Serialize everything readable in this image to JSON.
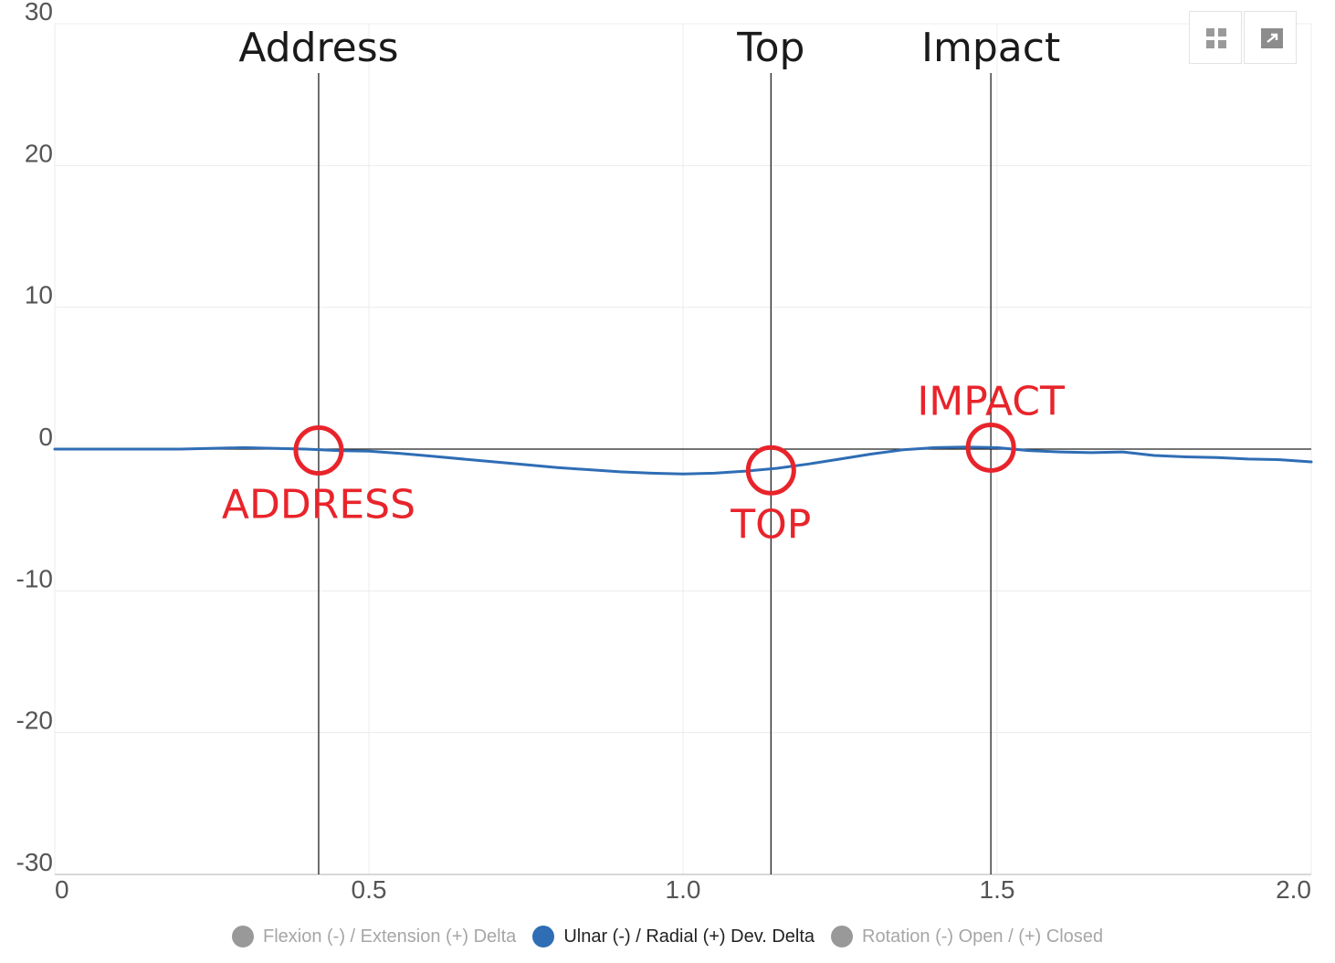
{
  "chart_data": {
    "type": "line",
    "xlim": [
      0,
      2.0
    ],
    "ylim": [
      -30,
      30
    ],
    "x_ticks": [
      {
        "value": 0,
        "label": "0"
      },
      {
        "value": 0.5,
        "label": "0.5"
      },
      {
        "value": 1.0,
        "label": "1.0"
      },
      {
        "value": 1.5,
        "label": "1.5"
      },
      {
        "value": 2.0,
        "label": "2.0"
      }
    ],
    "y_ticks": [
      {
        "value": 30,
        "label": "30"
      },
      {
        "value": 20,
        "label": "20"
      },
      {
        "value": 10,
        "label": "10"
      },
      {
        "value": 0,
        "label": "0"
      },
      {
        "value": -10,
        "label": "-10"
      },
      {
        "value": -20,
        "label": "-20"
      },
      {
        "value": -30,
        "label": "-30"
      }
    ],
    "grid": true,
    "legend_position": "bottom",
    "series": [
      {
        "name": "Flexion (-) / Extension (+) Delta",
        "color": "#999999",
        "visible": false,
        "x": [],
        "y": []
      },
      {
        "name": "Ulnar (-) / Radial (+) Dev. Delta",
        "color": "#2f6db5",
        "visible": true,
        "x": [
          0,
          0.1,
          0.2,
          0.3,
          0.4,
          0.45,
          0.5,
          0.55,
          0.6,
          0.7,
          0.8,
          0.9,
          0.95,
          1.0,
          1.05,
          1.1,
          1.15,
          1.2,
          1.25,
          1.3,
          1.35,
          1.4,
          1.45,
          1.5,
          1.55,
          1.6,
          1.65,
          1.7,
          1.75,
          1.8,
          1.85,
          1.9,
          1.95,
          2.0
        ],
        "y": [
          0.0,
          0.0,
          0.0,
          0.1,
          0.0,
          -0.1,
          -0.15,
          -0.3,
          -0.5,
          -0.9,
          -1.3,
          -1.6,
          -1.7,
          -1.75,
          -1.7,
          -1.55,
          -1.35,
          -1.05,
          -0.7,
          -0.35,
          -0.05,
          0.1,
          0.15,
          0.1,
          -0.1,
          -0.2,
          -0.25,
          -0.2,
          -0.45,
          -0.55,
          -0.6,
          -0.7,
          -0.75,
          -0.9
        ]
      },
      {
        "name": "Rotation (-) Open / (+) Closed",
        "color": "#999999",
        "visible": false,
        "x": [],
        "y": []
      }
    ],
    "events": [
      {
        "label": "Address",
        "x": 0.42,
        "marker_y": -0.1,
        "marker_label": "ADDRESS",
        "marker_label_side": "below"
      },
      {
        "label": "Top",
        "x": 1.14,
        "marker_y": -1.5,
        "marker_label": "TOP",
        "marker_label_side": "below"
      },
      {
        "label": "Impact",
        "x": 1.49,
        "marker_y": 0.1,
        "marker_label": "IMPACT",
        "marker_label_side": "above"
      }
    ],
    "annotation_color": "#e8242b"
  },
  "toolbar": {
    "grid_icon": "grid-icon",
    "expand_icon": "expand-icon"
  },
  "legend": [
    {
      "label": "Flexion (-) / Extension (+) Delta",
      "color": "#999999",
      "active": false
    },
    {
      "label": "Ulnar (-) / Radial (+) Dev. Delta",
      "color": "#2f6db5",
      "active": true
    },
    {
      "label": "Rotation (-) Open / (+) Closed",
      "color": "#999999",
      "active": false
    }
  ]
}
